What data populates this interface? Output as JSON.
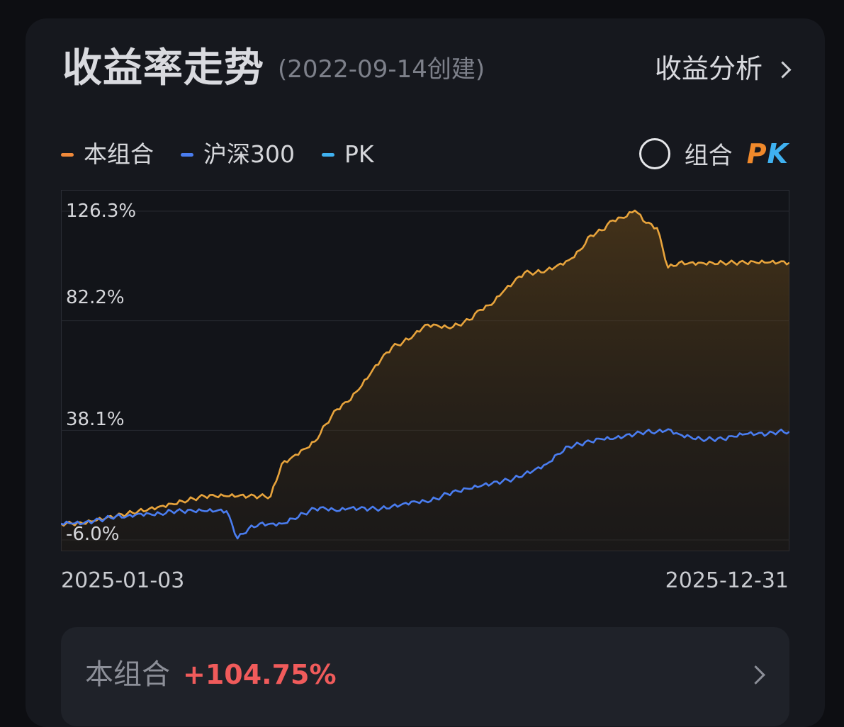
{
  "header": {
    "title": "收益率走势",
    "subtitle": "(2022-09-14创建)",
    "analysis_link": "收益分析"
  },
  "legend": [
    {
      "label": "本组合",
      "color": "#f0893a"
    },
    {
      "label": "沪深300",
      "color": "#4a7df0"
    },
    {
      "label": "PK",
      "color": "#3fb1f0"
    }
  ],
  "pk_toggle": {
    "label": "组合",
    "logo_p": "P",
    "logo_k": "K"
  },
  "chart_data": {
    "type": "line",
    "x_start": "2025-01-03",
    "x_end": "2025-12-31",
    "yticks": [
      "126.3%",
      "82.2%",
      "38.1%",
      "-6.0%"
    ],
    "ylim": [
      -6.0,
      126.3
    ],
    "grid": true,
    "series": [
      {
        "name": "本组合",
        "color": "#e8a43c",
        "values": [
          0,
          0,
          0,
          1,
          2,
          3,
          4,
          5,
          6,
          7,
          8,
          9,
          10,
          11,
          11,
          11,
          11,
          11,
          11,
          11,
          24,
          27,
          30,
          33,
          40,
          46,
          49,
          54,
          60,
          66,
          71,
          73,
          76,
          80,
          80,
          79,
          80,
          82,
          86,
          88,
          93,
          97,
          101,
          101,
          102,
          104,
          106,
          110,
          116,
          118,
          122,
          123,
          126,
          121,
          119,
          103,
          105,
          105,
          105,
          105,
          105,
          105,
          105,
          105,
          105,
          105,
          105
        ]
      },
      {
        "name": "沪深300",
        "color": "#4a7df0",
        "values": [
          0,
          0,
          0,
          1,
          2,
          3,
          3,
          4,
          4,
          4,
          5,
          5,
          5,
          5,
          5,
          5,
          -6,
          -2,
          0,
          0,
          0,
          2,
          4,
          6,
          6,
          5,
          6,
          6,
          6,
          6,
          7,
          8,
          9,
          9,
          10,
          12,
          13,
          14,
          15,
          16,
          17,
          18,
          20,
          22,
          24,
          28,
          31,
          32,
          33,
          34,
          34,
          35,
          36,
          37,
          37,
          38,
          36,
          35,
          34,
          34,
          34,
          35,
          36,
          36,
          36,
          37,
          37
        ]
      }
    ]
  },
  "summary": {
    "label": "本组合",
    "value": "+104.75%"
  }
}
